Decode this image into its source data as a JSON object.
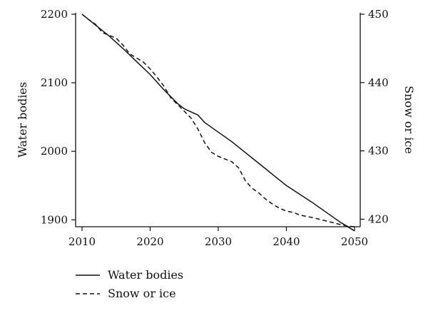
{
  "chart_data": {
    "type": "line",
    "x_ticks": [
      2010,
      2020,
      2030,
      2040,
      2050
    ],
    "xlim": [
      2010,
      2050
    ],
    "y_left": {
      "label": "Water bodies",
      "ticks": [
        1900,
        2000,
        2100,
        2200
      ],
      "lim": [
        1890,
        2202
      ]
    },
    "y_right": {
      "label": "Snow or ice",
      "ticks": [
        420,
        430,
        440,
        450
      ],
      "lim": [
        418.9,
        450.2
      ]
    },
    "legend_position": "bottom-left",
    "series": [
      {
        "name": "Water bodies",
        "axis": "left",
        "style": "solid",
        "color": "#111111",
        "x": [
          2010,
          2012,
          2014,
          2016,
          2018,
          2020,
          2022,
          2024,
          2025,
          2027,
          2028,
          2030,
          2032,
          2034,
          2036,
          2038,
          2040,
          2042,
          2044,
          2046,
          2048,
          2050
        ],
        "y": [
          2200,
          2184,
          2168,
          2150,
          2131,
          2112,
          2090,
          2070,
          2062,
          2053,
          2042,
          2028,
          2014,
          1998,
          1982,
          1966,
          1950,
          1937,
          1924,
          1910,
          1896,
          1884
        ]
      },
      {
        "name": "Snow or ice",
        "axis": "right",
        "style": "dashed",
        "color": "#111111",
        "x": [
          2010,
          2011,
          2012,
          2013,
          2015,
          2016,
          2017,
          2019,
          2020,
          2021,
          2022,
          2023,
          2024,
          2025,
          2026,
          2027,
          2028,
          2029,
          2030,
          2032,
          2033,
          2034,
          2035,
          2036,
          2037,
          2038,
          2039,
          2040,
          2041,
          2042,
          2044,
          2046,
          2048,
          2049,
          2050
        ],
        "y": [
          450,
          449.2,
          448.5,
          447.3,
          446.5,
          445.5,
          444.2,
          443.0,
          442.0,
          440.8,
          439.5,
          437.8,
          436.8,
          435.8,
          434.8,
          433.2,
          431.2,
          429.8,
          429.2,
          428.4,
          427.5,
          425.6,
          424.5,
          423.8,
          422.9,
          422.2,
          421.6,
          421.2,
          421.0,
          420.6,
          420.2,
          419.7,
          419.2,
          419.0,
          418.9
        ]
      }
    ]
  }
}
